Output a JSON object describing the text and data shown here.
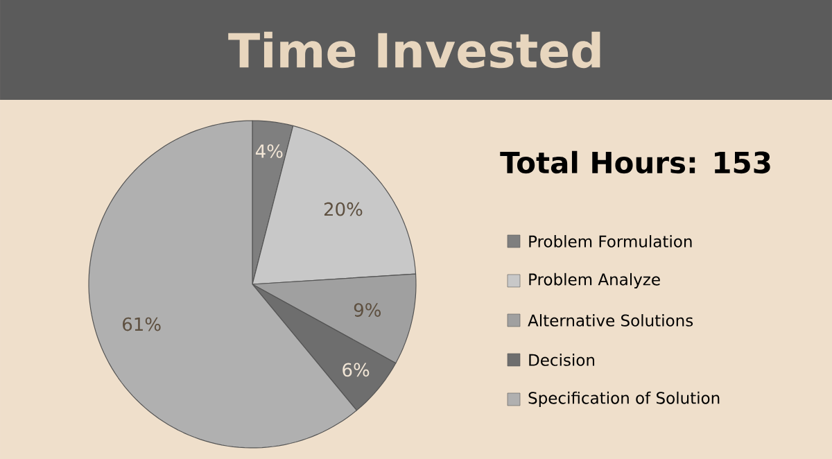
{
  "chart_data": {
    "type": "pie",
    "title": "Time Invested",
    "subtitle": "Total Hours: 153",
    "categories": [
      "Problem Formulation",
      "Problem Analyze",
      "Alternative Solutions",
      "Decision",
      "Specification of Solution"
    ],
    "values": [
      4,
      20,
      9,
      6,
      61
    ],
    "colors": [
      "#7f7f7f",
      "#c8c8c8",
      "#a0a0a0",
      "#6e6e6e",
      "#b0b0b0"
    ],
    "value_labels": [
      "4%",
      "20%",
      "9%",
      "6%",
      "61%"
    ],
    "legend": "right"
  }
}
